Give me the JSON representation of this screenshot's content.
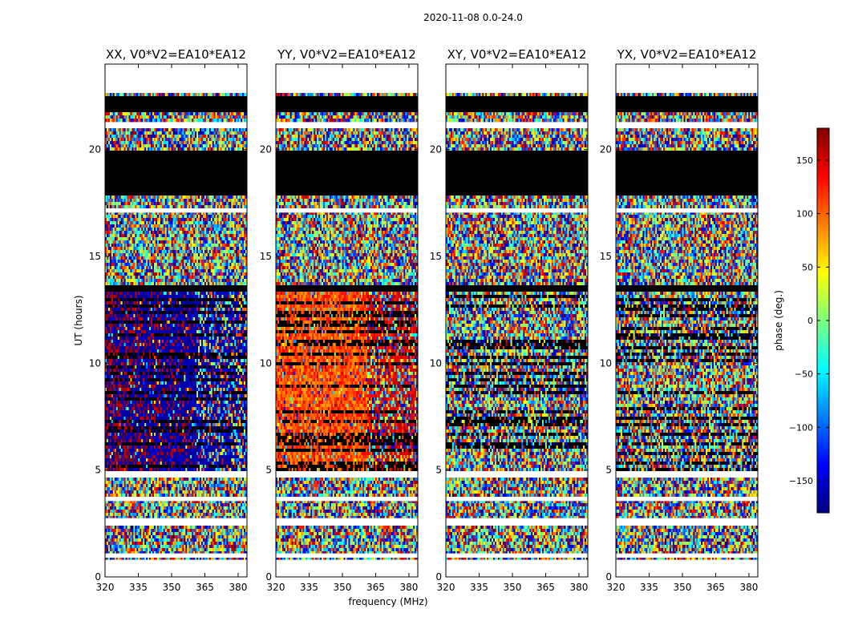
{
  "figure": {
    "suptitle": "2020-11-08 0.0-24.0",
    "xlabel": "frequency (MHz)",
    "ylabel": "UT (hours)"
  },
  "colorbar": {
    "label": "phase (deg.)",
    "ticks": [
      "150",
      "100",
      "50",
      "0",
      "−50",
      "−100",
      "−150"
    ],
    "tick_values": [
      150,
      100,
      50,
      0,
      -50,
      -100,
      -150
    ],
    "range": [
      -180,
      180
    ],
    "colormap": "jet",
    "colors": [
      "#00007f",
      "#0000ff",
      "#007fff",
      "#00ffff",
      "#7fff7f",
      "#ffff00",
      "#ff7f00",
      "#ff0000",
      "#7f0000"
    ]
  },
  "chart_data": {
    "type": "heatmap",
    "xlim": [
      320,
      384
    ],
    "ylim": [
      0,
      24
    ],
    "xticks": [
      "320",
      "335",
      "350",
      "365",
      "380"
    ],
    "xtick_values": [
      320,
      335,
      350,
      365,
      380
    ],
    "yticks": [
      "0",
      "5",
      "10",
      "15",
      "20"
    ],
    "ytick_values": [
      0,
      5,
      10,
      15,
      20
    ],
    "white_bands": [
      [
        0,
        0.8
      ],
      [
        0.9,
        1.1
      ],
      [
        2.45,
        2.75
      ],
      [
        3.55,
        3.75
      ],
      [
        4.65,
        4.95
      ],
      [
        17.05,
        17.25
      ],
      [
        21.0,
        21.25
      ],
      [
        22.7,
        24
      ]
    ],
    "black_bands": [
      [
        13.4,
        13.7
      ],
      [
        17.9,
        20.0
      ],
      [
        21.8,
        22.5
      ]
    ],
    "signal_band": [
      5.0,
      13.4
    ],
    "feature_split_freq": 361,
    "panels": [
      {
        "title": "XX, V0*V2=EA10*EA12",
        "signal": true,
        "low_phase": [
          150,
          180
        ],
        "low_phase_alt": [
          -180,
          -150
        ],
        "split_phase": [
          -180,
          -150
        ]
      },
      {
        "title": "YY, V0*V2=EA10*EA12",
        "signal": true,
        "low_phase": [
          75,
          140
        ],
        "low_phase_alt": [
          75,
          140
        ],
        "split_phase": [
          120,
          170
        ]
      },
      {
        "title": "XY, V0*V2=EA10*EA12",
        "signal": false
      },
      {
        "title": "YX, V0*V2=EA10*EA12",
        "signal": false
      }
    ]
  }
}
